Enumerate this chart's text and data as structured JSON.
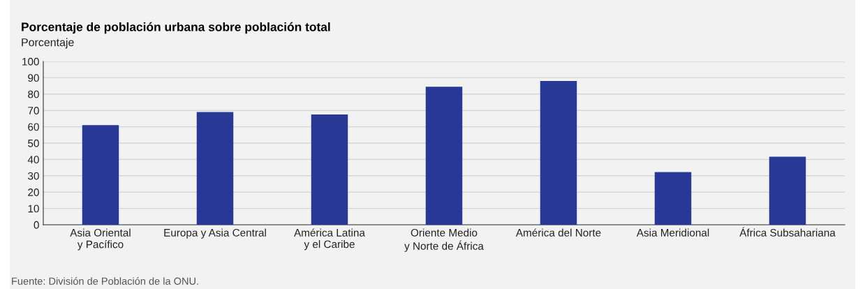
{
  "chart_data": {
    "type": "bar",
    "title": "Porcentaje de población urbana sobre población total",
    "ylabel": "Porcentaje",
    "categories": [
      "Asia Oriental\ny Pacífico",
      "Europa y Asia Central",
      "América Latina\ny el Caribe",
      "Oriente Medio\ny Norte de África",
      "América del Norte",
      "Asia Meridional",
      "África Subsahariana"
    ],
    "values": [
      61,
      69,
      67.5,
      84.5,
      88,
      32.3,
      41.7
    ],
    "color": "#283895",
    "ylim": [
      0,
      100
    ],
    "yticks": [
      0,
      10,
      20,
      30,
      40,
      50,
      60,
      70,
      80,
      90,
      100
    ],
    "grid": "y",
    "annotations": [
      "Fuente: División de Población de la ONU."
    ]
  }
}
